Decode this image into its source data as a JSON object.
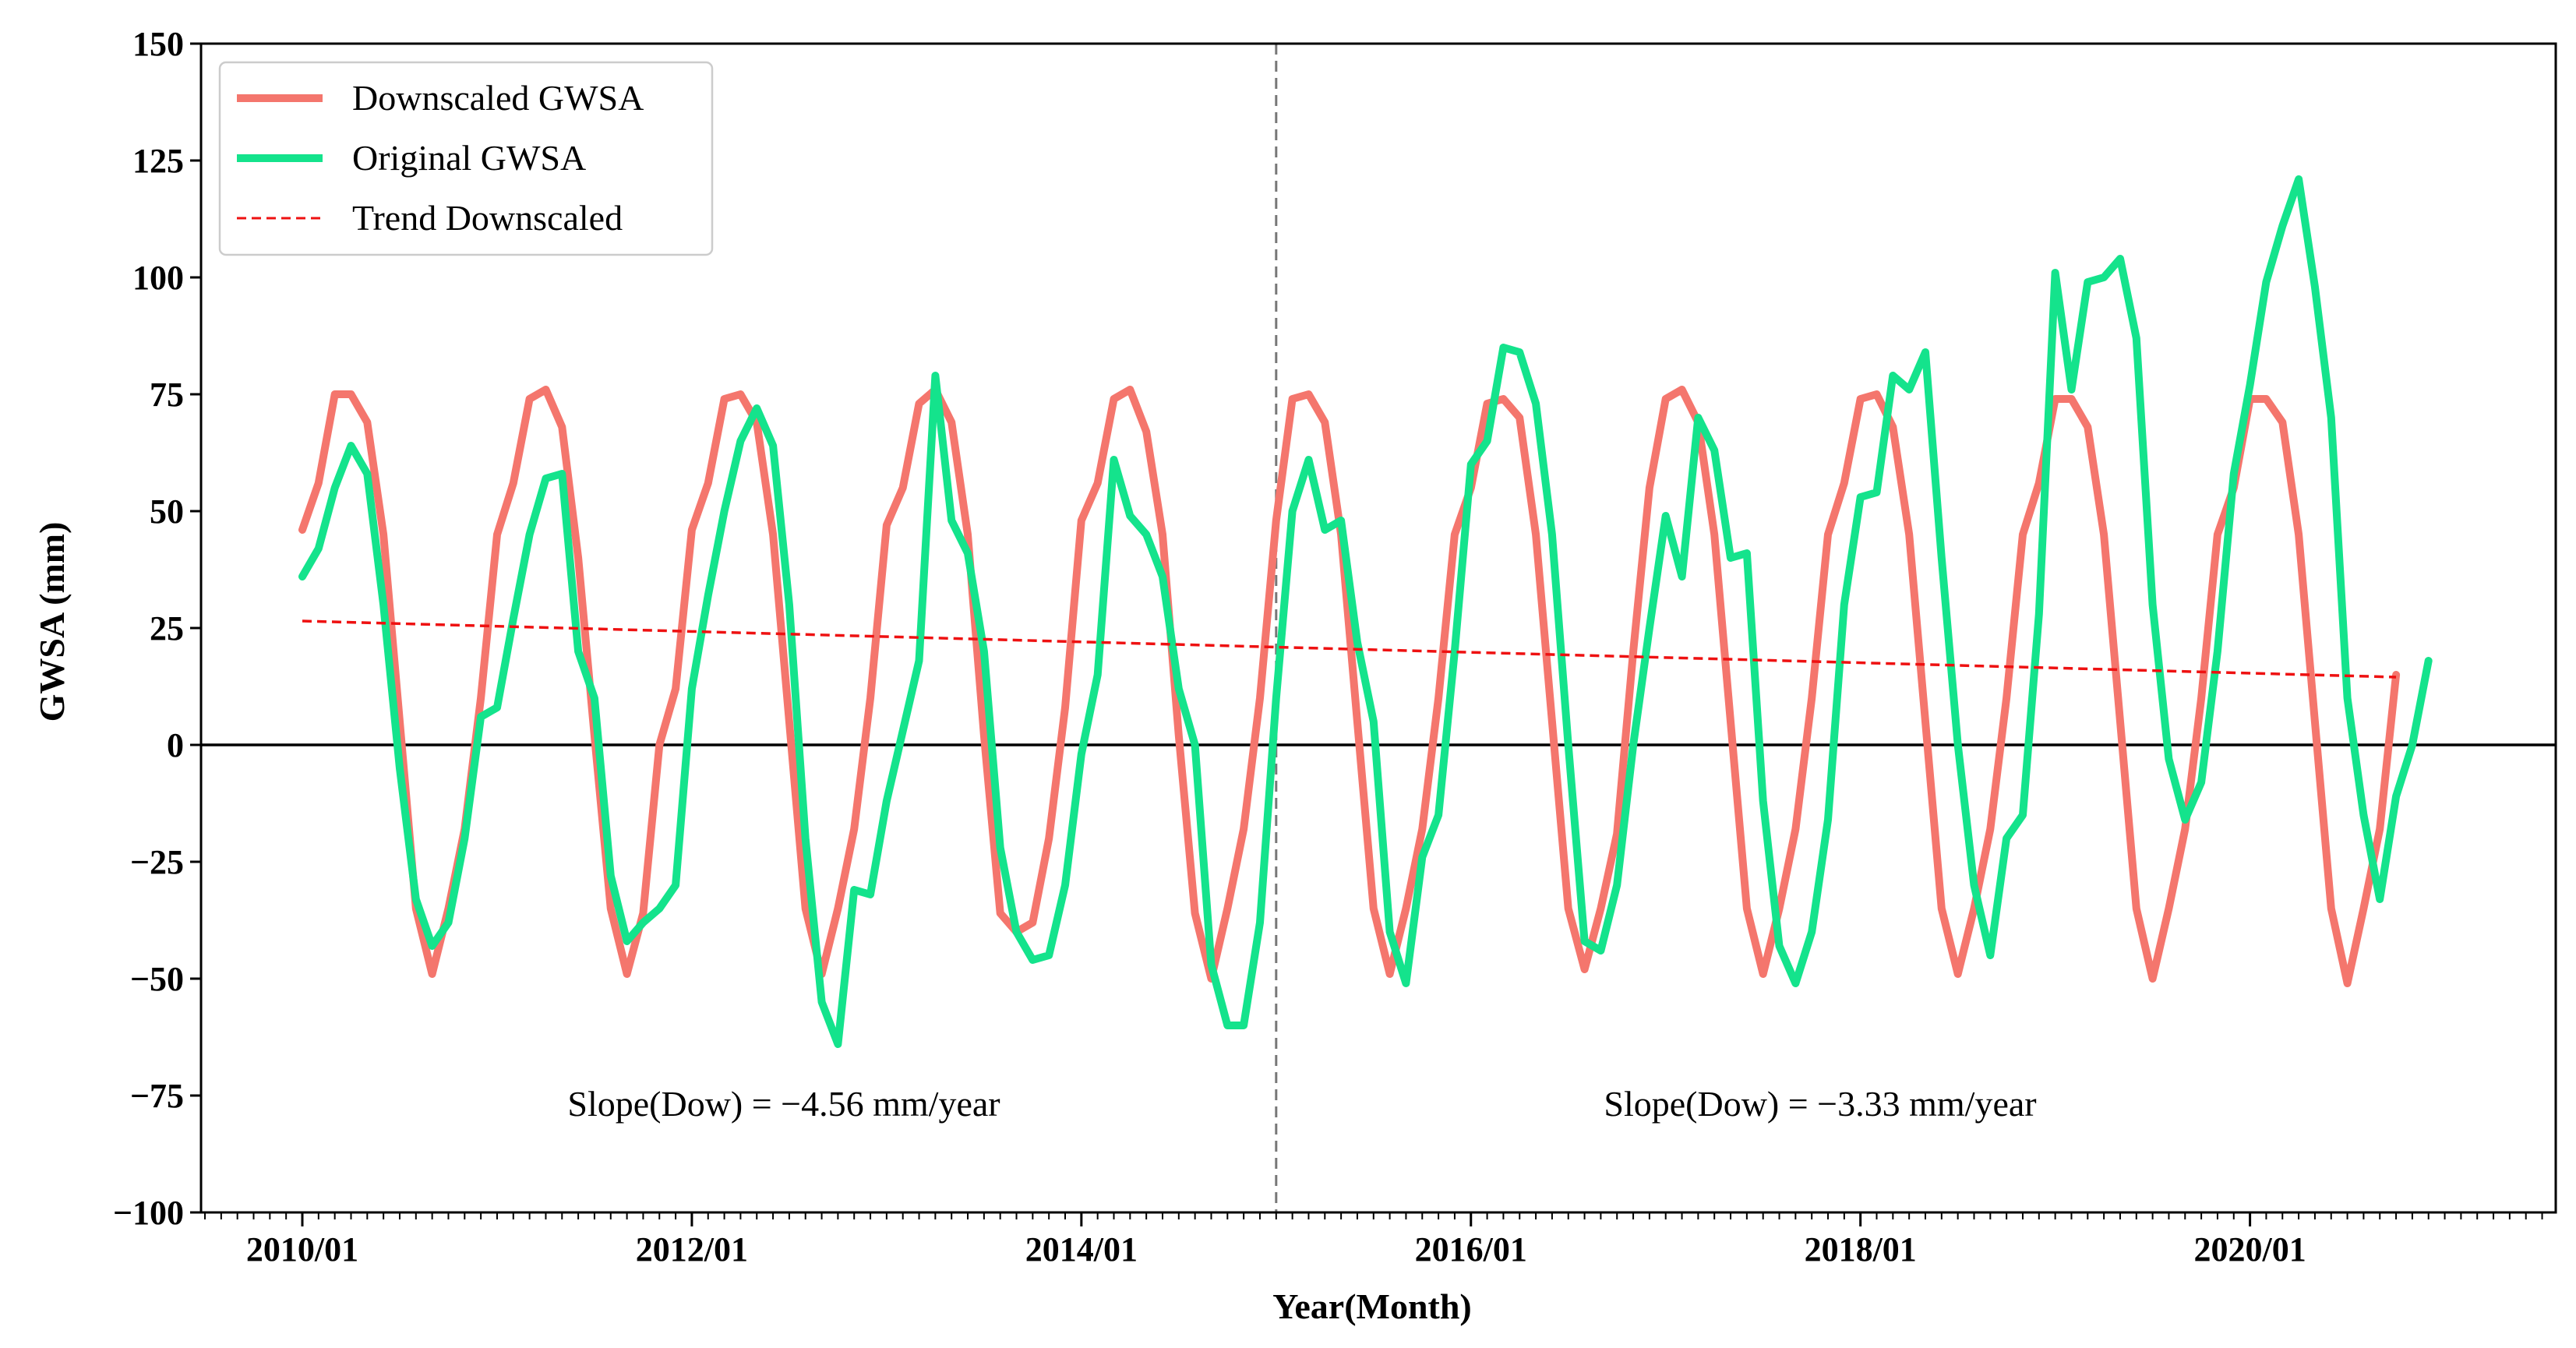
{
  "chart_data": {
    "type": "line",
    "xlabel": "Year(Month)",
    "ylabel": "GWSA (mm)",
    "ylim": [
      -100,
      150
    ],
    "yticks": [
      150,
      125,
      100,
      75,
      50,
      25,
      0,
      -25,
      -50,
      -75,
      -100
    ],
    "ytick_labels": [
      "150",
      "125",
      "100",
      "75",
      "50",
      "25",
      "0",
      "−25",
      "−50",
      "−75",
      "−100"
    ],
    "xticks": [
      0,
      24,
      48,
      72,
      96,
      120
    ],
    "xtick_labels": [
      "2010/01",
      "2012/01",
      "2014/01",
      "2016/01",
      "2018/01",
      "2020/01"
    ],
    "x_start": "2010/01",
    "x_end": "2020/12",
    "breakpoint": "2015/01",
    "legend": {
      "position": "upper-left",
      "entries": [
        "Downscaled GWSA",
        "Original GWSA",
        "Trend Downscaled"
      ]
    },
    "annotations": [
      "Slope(Dow) = −4.56 mm/year",
      "Slope(Dow) = −3.33 mm/year"
    ],
    "colors": {
      "downscaled": "#f4766d",
      "original": "#14e38c",
      "trend": "#ee1111",
      "breakpoint": "#777777",
      "zero": "#000000"
    },
    "series": [
      {
        "name": "Downscaled GWSA",
        "style": "solid",
        "values": [
          46,
          56,
          75,
          75,
          69,
          45,
          5,
          -35,
          -49,
          -35,
          -18,
          10,
          45,
          56,
          74,
          76,
          68,
          40,
          2,
          -35,
          -49,
          -36,
          0,
          12,
          46,
          56,
          74,
          75,
          69,
          45,
          5,
          -35,
          -49,
          -35,
          -18,
          10,
          47,
          55,
          73,
          76,
          69,
          45,
          2,
          -36,
          -40,
          -38,
          -20,
          8,
          48,
          56,
          74,
          76,
          67,
          45,
          2,
          -36,
          -50,
          -35,
          -18,
          10,
          48,
          74,
          75,
          69,
          45,
          5,
          -35,
          -49,
          -35,
          -18,
          10,
          45,
          55,
          73,
          74,
          70,
          45,
          5,
          -35,
          -48,
          -35,
          -19,
          20,
          55,
          74,
          76,
          69,
          45,
          5,
          -35,
          -49,
          -35,
          -18,
          10,
          45,
          56,
          74,
          75,
          68,
          45,
          5,
          -35,
          -49,
          -35,
          -18,
          10,
          45,
          56,
          74,
          74,
          68,
          45,
          5,
          -35,
          -50,
          -35,
          -18,
          10,
          45,
          55,
          74,
          74,
          69,
          45,
          5,
          -35,
          -51,
          -35,
          -18,
          15
        ]
      },
      {
        "name": "Original GWSA",
        "style": "solid",
        "values": [
          36,
          42,
          55,
          64,
          58,
          30,
          -5,
          -33,
          -43,
          -38,
          -20,
          6,
          8,
          27,
          45,
          57,
          58,
          20,
          10,
          -28,
          -42,
          -38,
          -35,
          -30,
          12,
          32,
          50,
          65,
          72,
          64,
          30,
          -20,
          -55,
          -64,
          -31,
          -32,
          -12,
          3,
          18,
          79,
          48,
          41,
          20,
          -22,
          -40,
          -46,
          -45,
          -30,
          -2,
          15,
          61,
          49,
          45,
          36,
          12,
          0,
          -47,
          -60,
          -60,
          -38,
          10,
          50,
          61,
          46,
          48,
          22,
          5,
          -40,
          -51,
          -24,
          -15,
          20,
          60,
          65,
          85,
          84,
          73,
          45,
          0,
          -42,
          -44,
          -30,
          0,
          25,
          49,
          36,
          70,
          63,
          40,
          41,
          -12,
          -43,
          -51,
          -40,
          -16,
          30,
          53,
          54,
          79,
          76,
          84,
          40,
          0,
          -30,
          -45,
          -20,
          -15,
          28,
          101,
          76,
          99,
          100,
          104,
          87,
          30,
          -3,
          -16,
          -8,
          20,
          58,
          77,
          99,
          111,
          121,
          98,
          70,
          10,
          -15,
          -33,
          -11,
          0,
          18
        ]
      },
      {
        "name": "Trend Downscaled",
        "style": "dashed",
        "values": [
          26.5,
          14.5
        ]
      }
    ]
  }
}
